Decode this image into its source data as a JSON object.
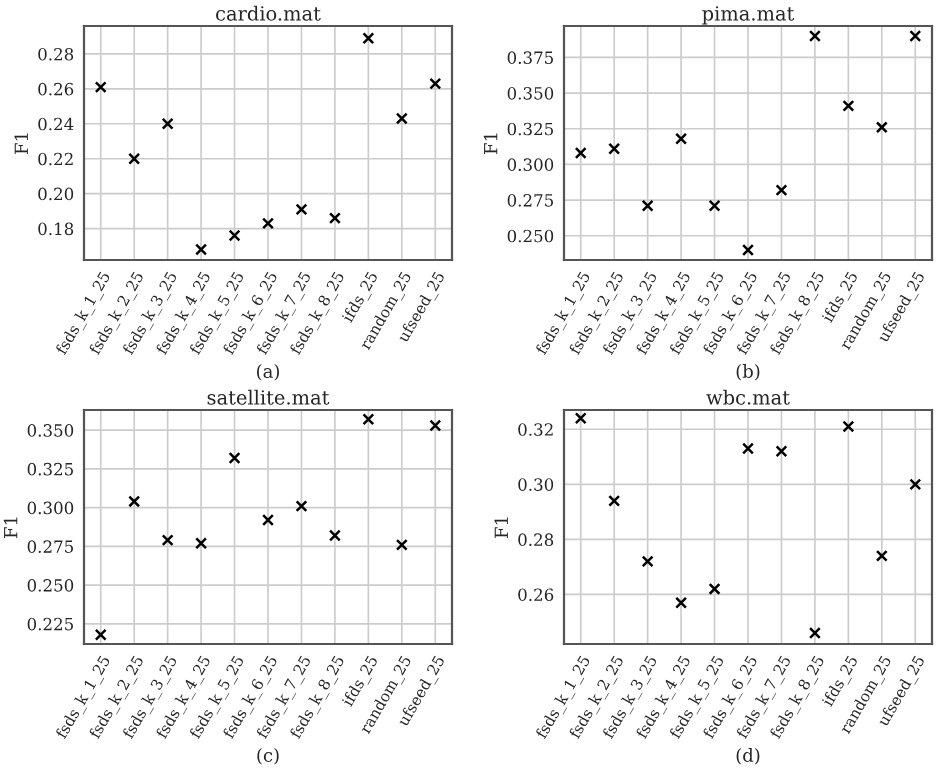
{
  "chart_data": [
    {
      "type": "scatter",
      "title": "cardio.mat",
      "ylabel": "F1",
      "categories": [
        "fsds_k_1_25",
        "fsds_k_2_25",
        "fsds_k_3_25",
        "fsds_k_4_25",
        "fsds_k_5_25",
        "fsds_k_6_25",
        "fsds_k_7_25",
        "fsds_k_8_25",
        "ifds_25",
        "random_25",
        "ufseed_25"
      ],
      "values": [
        0.261,
        0.22,
        0.24,
        0.168,
        0.176,
        0.183,
        0.191,
        0.186,
        0.289,
        0.243,
        0.263
      ],
      "color": "#000000",
      "marker": "cross",
      "ylim": [
        0.162,
        0.296
      ],
      "yticks": [
        {
          "value": 0.18,
          "label": "0.18"
        },
        {
          "value": 0.2,
          "label": "0.20"
        },
        {
          "value": 0.22,
          "label": "0.22"
        },
        {
          "value": 0.24,
          "label": "0.24"
        },
        {
          "value": 0.26,
          "label": "0.26"
        },
        {
          "value": 0.28,
          "label": "0.28"
        }
      ],
      "grid": true,
      "annotations": [
        "(a)"
      ]
    },
    {
      "type": "scatter",
      "title": "pima.mat",
      "ylabel": "F1",
      "categories": [
        "fsds_k_1_25",
        "fsds_k_2_25",
        "fsds_k_3_25",
        "fsds_k_4_25",
        "fsds_k_5_25",
        "fsds_k_6_25",
        "fsds_k_7_25",
        "fsds_k_8_25",
        "ifds_25",
        "random_25",
        "ufseed_25"
      ],
      "values": [
        0.308,
        0.311,
        0.271,
        0.318,
        0.271,
        0.24,
        0.282,
        0.39,
        0.341,
        0.326,
        0.39
      ],
      "color": "#000000",
      "marker": "cross",
      "ylim": [
        0.233,
        0.397
      ],
      "yticks": [
        {
          "value": 0.25,
          "label": "0.250"
        },
        {
          "value": 0.275,
          "label": "0.275"
        },
        {
          "value": 0.3,
          "label": "0.300"
        },
        {
          "value": 0.325,
          "label": "0.325"
        },
        {
          "value": 0.35,
          "label": "0.350"
        },
        {
          "value": 0.375,
          "label": "0.375"
        }
      ],
      "grid": true,
      "annotations": [
        "(b)"
      ]
    },
    {
      "type": "scatter",
      "title": "satellite.mat",
      "ylabel": "F1",
      "categories": [
        "fsds_k_1_25",
        "fsds_k_2_25",
        "fsds_k_3_25",
        "fsds_k_4_25",
        "fsds_k_5_25",
        "fsds_k_6_25",
        "fsds_k_7_25",
        "fsds_k_8_25",
        "ifds_25",
        "random_25",
        "ufseed_25"
      ],
      "values": [
        0.218,
        0.304,
        0.279,
        0.277,
        0.332,
        0.292,
        0.301,
        0.282,
        0.357,
        0.276,
        0.353
      ],
      "color": "#000000",
      "marker": "cross",
      "ylim": [
        0.212,
        0.363
      ],
      "yticks": [
        {
          "value": 0.225,
          "label": "0.225"
        },
        {
          "value": 0.25,
          "label": "0.250"
        },
        {
          "value": 0.275,
          "label": "0.275"
        },
        {
          "value": 0.3,
          "label": "0.300"
        },
        {
          "value": 0.325,
          "label": "0.325"
        },
        {
          "value": 0.35,
          "label": "0.350"
        }
      ],
      "grid": true,
      "annotations": [
        "(c)"
      ]
    },
    {
      "type": "scatter",
      "title": "wbc.mat",
      "ylabel": "F1",
      "categories": [
        "fsds_k_1_25",
        "fsds_k_2_25",
        "fsds_k_3_25",
        "fsds_k_4_25",
        "fsds_k_5_25",
        "fsds_k_6_25",
        "fsds_k_7_25",
        "fsds_k_8_25",
        "ifds_25",
        "random_25",
        "ufseed_25"
      ],
      "values": [
        0.324,
        0.294,
        0.272,
        0.257,
        0.262,
        0.313,
        0.312,
        0.246,
        0.321,
        0.274,
        0.3
      ],
      "color": "#000000",
      "marker": "cross",
      "ylim": [
        0.242,
        0.327
      ],
      "yticks": [
        {
          "value": 0.26,
          "label": "0.26"
        },
        {
          "value": 0.28,
          "label": "0.28"
        },
        {
          "value": 0.3,
          "label": "0.30"
        },
        {
          "value": 0.32,
          "label": "0.32"
        }
      ],
      "grid": true,
      "annotations": [
        "(d)"
      ]
    }
  ]
}
